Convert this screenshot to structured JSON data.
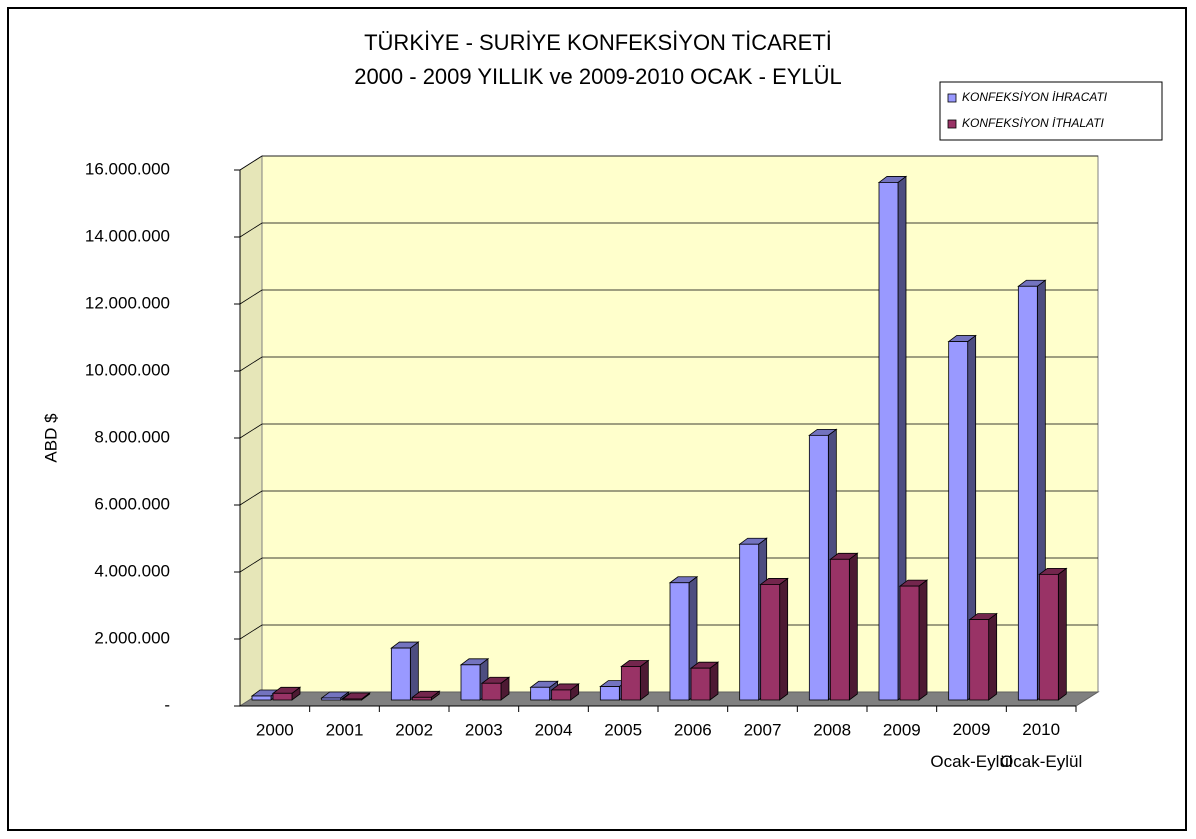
{
  "chart_data": {
    "type": "bar",
    "title": "TÜRKİYE - SURİYE KONFEKSİYON TİCARETİ",
    "subtitle": "2000 - 2009 YILLIK ve 2009-2010 OCAK - EYLÜL",
    "y_label": "ABD $",
    "categories": [
      "2000",
      "2001",
      "2002",
      "2003",
      "2004",
      "2005",
      "2006",
      "2007",
      "2008",
      "2009",
      "2009 Ocak-Eylül",
      "2010 Ocak-Eylül"
    ],
    "series": [
      {
        "name": "KONFEKSİYON İHRACATI",
        "color": "#9999ff",
        "values": [
          120000,
          60000,
          1550000,
          1050000,
          380000,
          400000,
          3500000,
          4650000,
          7900000,
          15450000,
          10700000,
          12350000
        ]
      },
      {
        "name": "KONFEKSİYON İTHALATI",
        "color": "#993366",
        "values": [
          200000,
          30000,
          80000,
          500000,
          300000,
          1000000,
          950000,
          3450000,
          4200000,
          3400000,
          2400000,
          3750000
        ]
      }
    ],
    "ylim": [
      0,
      16000000
    ],
    "yticks": [
      {
        "value": 0,
        "label": "-"
      },
      {
        "value": 2000000,
        "label": "2.000.000"
      },
      {
        "value": 4000000,
        "label": "4.000.000"
      },
      {
        "value": 6000000,
        "label": "6.000.000"
      },
      {
        "value": 8000000,
        "label": "8.000.000"
      },
      {
        "value": 10000000,
        "label": "10.000.000"
      },
      {
        "value": 12000000,
        "label": "12.000.000"
      },
      {
        "value": 14000000,
        "label": "14.000.000"
      },
      {
        "value": 16000000,
        "label": "16.000.000"
      }
    ],
    "grid": true,
    "legend": "top-right",
    "background": "#ffffcc"
  }
}
